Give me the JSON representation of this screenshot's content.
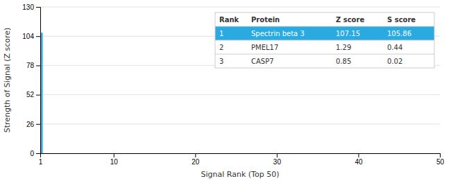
{
  "chart_data": {
    "type": "bar",
    "x": [
      1
    ],
    "values": [
      107.15
    ],
    "color": "#29ABE2",
    "xlim": [
      1,
      50
    ],
    "xticks": [
      1,
      10,
      20,
      30,
      40,
      50
    ],
    "ylim": [
      0,
      130
    ],
    "yticks": [
      0,
      26,
      52,
      78,
      104,
      130
    ],
    "xlabel": "Signal Rank (Top 50)",
    "ylabel": "Strength of Signal (Z score)",
    "grid": true,
    "table": {
      "headers": [
        "Rank",
        "Protein",
        "Z score",
        "S score"
      ],
      "rows": [
        [
          "1",
          "Spectrin beta 3",
          "107.15",
          "105.86"
        ],
        [
          "2",
          "PMEL17",
          "1.29",
          "0.44"
        ],
        [
          "3",
          "CASP7",
          "0.85",
          "0.02"
        ]
      ]
    }
  }
}
